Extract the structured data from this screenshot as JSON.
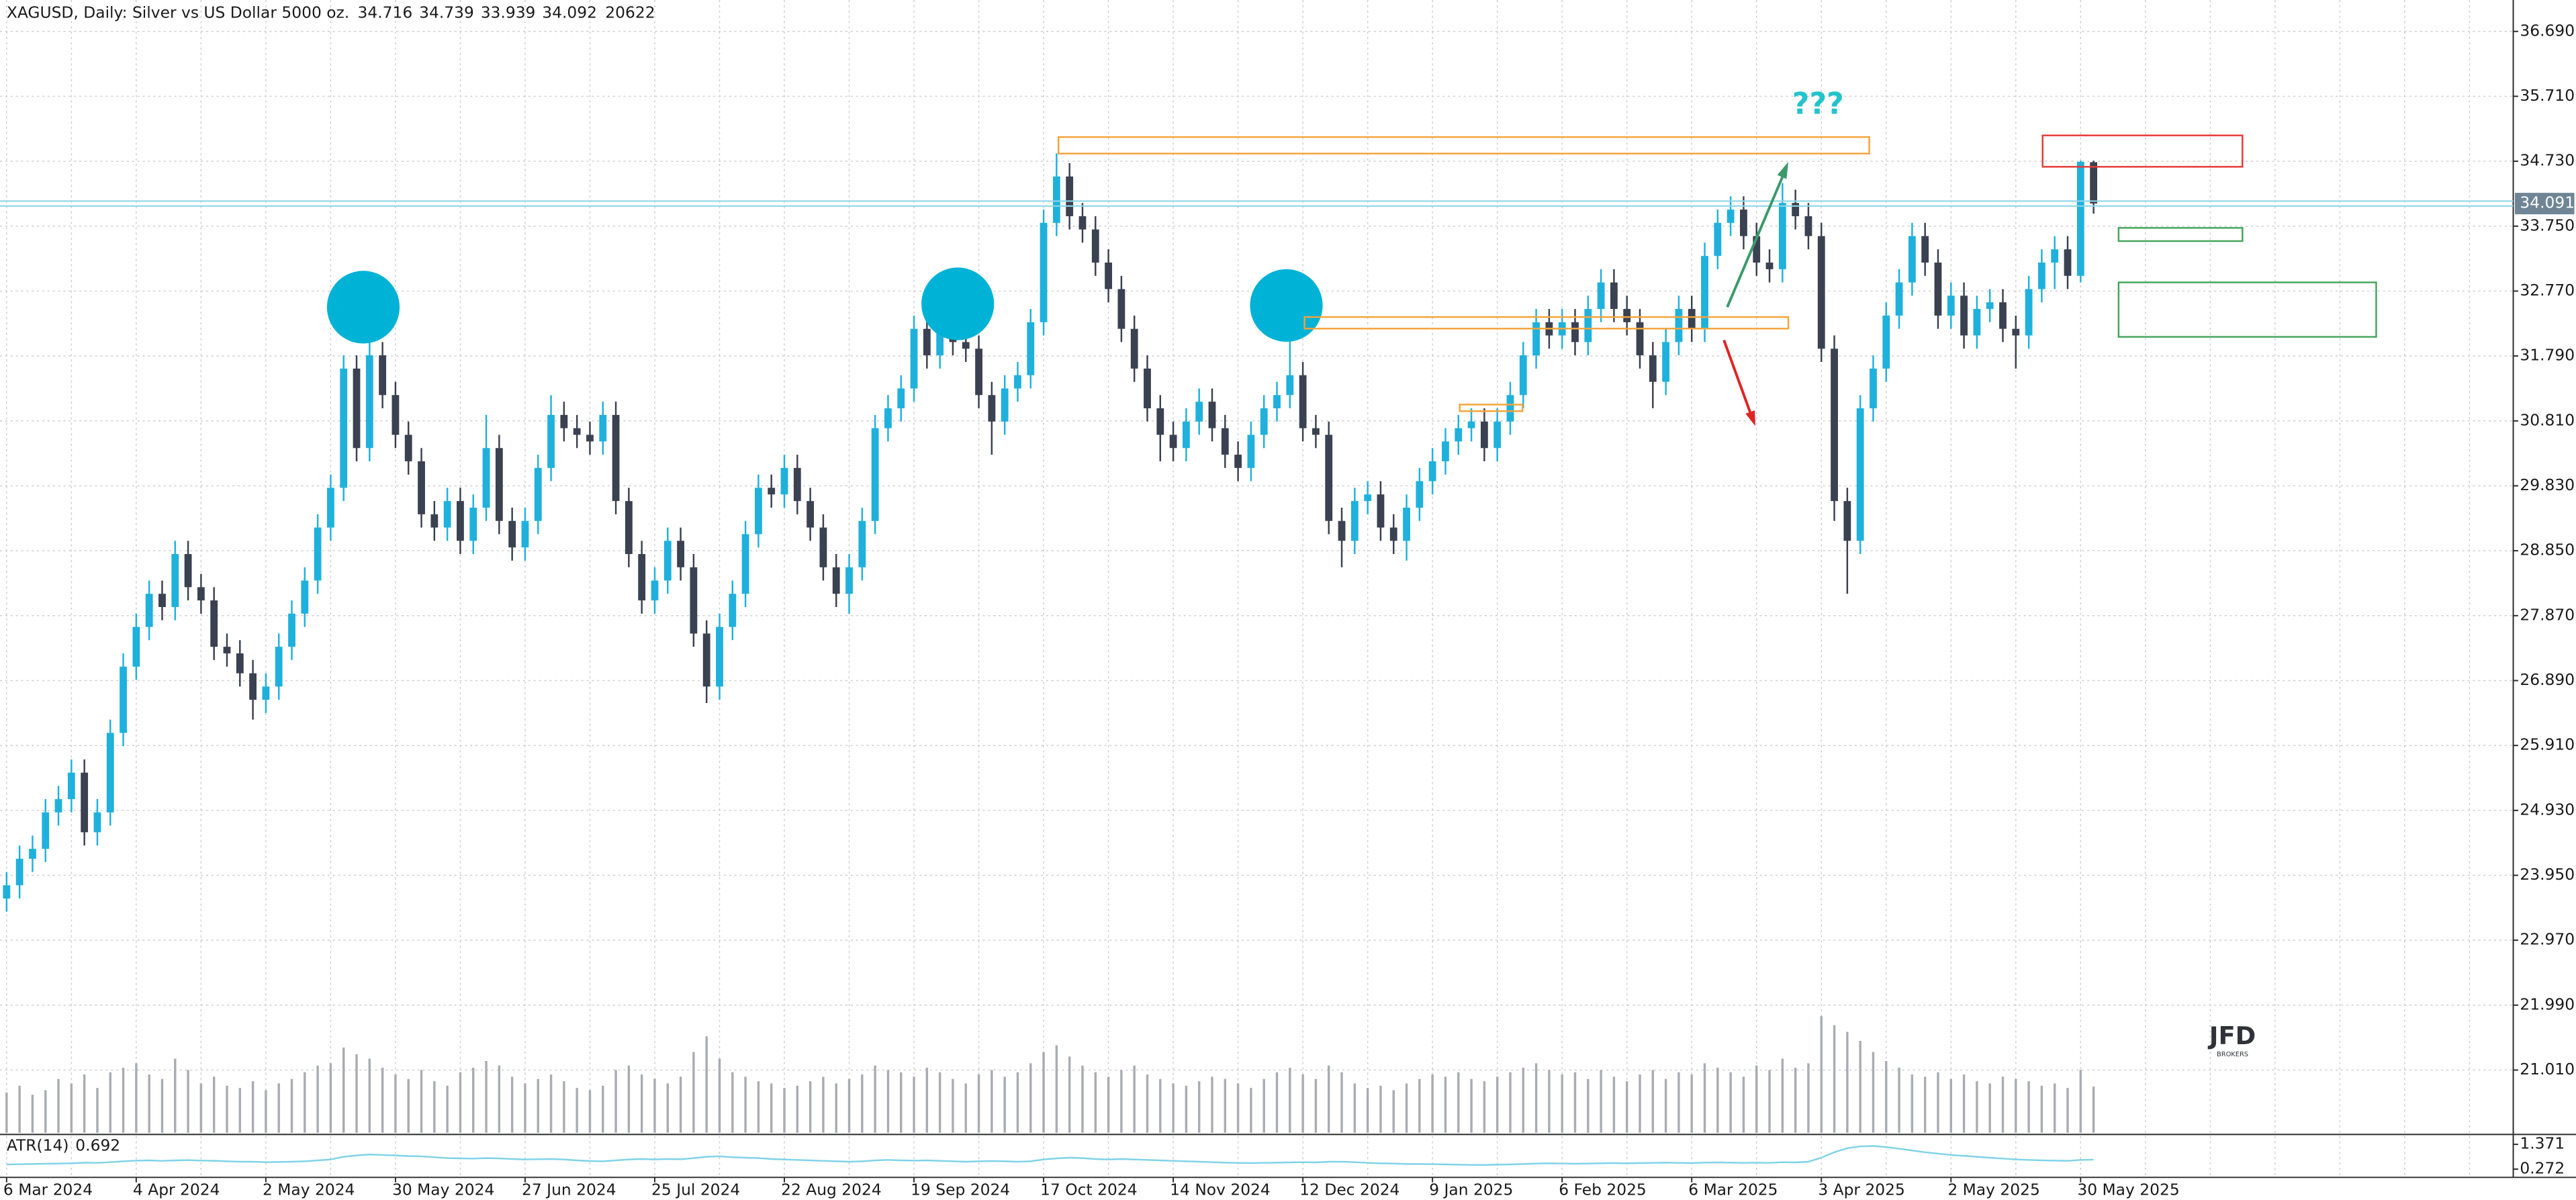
{
  "chart_data": {
    "type": "candlestick",
    "title": "XAGUSD, Daily:  Silver vs US Dollar 5000 oz.",
    "categories": [
      "6 Mar 2024",
      null,
      null,
      null,
      null,
      null,
      null,
      null,
      null,
      null,
      "4 Apr 2024",
      null,
      null,
      null,
      null,
      null,
      null,
      null,
      null,
      null,
      "2 May 2024",
      null,
      null,
      null,
      null,
      null,
      null,
      null,
      null,
      null,
      "30 May 2024",
      null,
      null,
      null,
      null,
      null,
      null,
      null,
      null,
      null,
      "27 Jun 2024",
      null,
      null,
      null,
      null,
      null,
      null,
      null,
      null,
      null,
      "25 Jul 2024",
      null,
      null,
      null,
      null,
      null,
      null,
      null,
      null,
      null,
      "22 Aug 2024",
      null,
      null,
      null,
      null,
      null,
      null,
      null,
      null,
      null,
      "19 Sep 2024",
      null,
      null,
      null,
      null,
      null,
      null,
      null,
      null,
      null,
      "17 Oct 2024",
      null,
      null,
      null,
      null,
      null,
      null,
      null,
      null,
      null,
      "14 Nov 2024",
      null,
      null,
      null,
      null,
      null,
      null,
      null,
      null,
      null,
      "12 Dec 2024",
      null,
      null,
      null,
      null,
      null,
      null,
      null,
      null,
      null,
      "9 Jan 2025",
      null,
      null,
      null,
      null,
      null,
      null,
      null,
      null,
      null,
      "6 Feb 2025",
      null,
      null,
      null,
      null,
      null,
      null,
      null,
      null,
      null,
      "6 Mar 2025",
      null,
      null,
      null,
      null,
      null,
      null,
      null,
      null,
      null,
      "3 Apr 2025",
      null,
      null,
      null,
      null,
      null,
      null,
      null,
      null,
      null,
      "2 May 2025",
      null,
      null,
      null,
      null,
      null,
      null,
      null,
      null,
      null,
      "30 May 2025",
      null
    ],
    "open": [
      23.6,
      23.8,
      24.2,
      24.35,
      24.9,
      25.1,
      25.5,
      24.6,
      24.9,
      26.1,
      27.1,
      27.7,
      28.2,
      28,
      28.8,
      28.3,
      28.1,
      27.4,
      27.3,
      27,
      26.6,
      26.8,
      27.4,
      27.9,
      28.4,
      29.2,
      29.8,
      31.6,
      30.4,
      31.8,
      31.2,
      30.6,
      30.2,
      29.4,
      29.2,
      29.6,
      29,
      29.5,
      30.4,
      29.3,
      28.9,
      29.3,
      30.1,
      30.9,
      30.7,
      30.6,
      30.5,
      30.9,
      29.6,
      28.8,
      28.1,
      28.4,
      29,
      28.6,
      27.6,
      26.8,
      27.7,
      28.2,
      29.1,
      29.8,
      29.7,
      30.1,
      29.6,
      29.2,
      28.6,
      28.2,
      28.6,
      29.3,
      30.7,
      31,
      31.3,
      32.2,
      31.8,
      32.3,
      32,
      31.9,
      31.2,
      30.8,
      31.3,
      31.5,
      32.3,
      33.8,
      34.5,
      33.9,
      33.7,
      33.2,
      32.8,
      32.2,
      31.6,
      31,
      30.6,
      30.4,
      30.8,
      31.1,
      30.7,
      30.3,
      30.1,
      30.6,
      31,
      31.2,
      31.5,
      30.7,
      30.6,
      29.3,
      29,
      29.6,
      29.7,
      29.2,
      29,
      29.5,
      29.9,
      30.2,
      30.5,
      30.7,
      30.8,
      30.4,
      30.8,
      31.2,
      31.8,
      32.3,
      32.1,
      32.3,
      32,
      32.5,
      32.9,
      32.5,
      32.3,
      31.8,
      31.4,
      32,
      32.5,
      32.2,
      33.3,
      33.8,
      34,
      33.6,
      33.2,
      33.1,
      34.1,
      33.9,
      33.6,
      31.9,
      29.6,
      29,
      31,
      31.6,
      32.4,
      32.9,
      33.6,
      33.2,
      32.4,
      32.7,
      32.1,
      32.5,
      32.6,
      32.2,
      32.1,
      32.8,
      33.2,
      33.4,
      33,
      34.716
    ],
    "high": [
      24,
      24.4,
      24.55,
      25.1,
      25.3,
      25.7,
      25.7,
      25.1,
      26.3,
      27.3,
      27.9,
      28.4,
      28.4,
      29,
      29,
      28.5,
      28.3,
      27.6,
      27.5,
      27.2,
      27,
      27.6,
      28.1,
      28.6,
      29.4,
      30,
      31.8,
      31.8,
      32.3,
      32,
      31.4,
      30.8,
      30.4,
      29.6,
      29.8,
      29.8,
      29.7,
      30.9,
      30.6,
      29.5,
      29.5,
      30.3,
      31.2,
      31.1,
      30.9,
      30.8,
      31.1,
      31.1,
      29.8,
      29,
      28.6,
      29.2,
      29.2,
      28.8,
      27.8,
      27.9,
      28.4,
      29.3,
      30,
      30,
      30.3,
      30.3,
      29.8,
      29.4,
      28.8,
      28.8,
      29.5,
      30.9,
      31.2,
      31.5,
      32.4,
      32.4,
      32.6,
      32.5,
      32.2,
      32.1,
      31.4,
      31.5,
      31.7,
      32.5,
      34,
      34.85,
      34.7,
      34.1,
      33.9,
      33.4,
      33,
      32.4,
      31.8,
      31.2,
      30.8,
      31,
      31.3,
      31.3,
      30.9,
      30.5,
      30.8,
      31.2,
      31.4,
      32.4,
      31.7,
      30.9,
      30.8,
      29.5,
      29.8,
      29.9,
      29.9,
      29.4,
      29.7,
      30.1,
      30.4,
      30.7,
      30.9,
      31,
      31,
      31,
      31.4,
      32,
      32.5,
      32.5,
      32.5,
      32.5,
      32.7,
      33.1,
      33.1,
      32.7,
      32.5,
      32,
      32.2,
      32.7,
      32.7,
      33.5,
      34,
      34.2,
      34.2,
      33.8,
      33.4,
      34.4,
      34.3,
      34.1,
      33.8,
      32.1,
      29.8,
      31.2,
      31.8,
      32.6,
      33.1,
      33.8,
      33.8,
      33.4,
      32.9,
      32.9,
      32.7,
      32.8,
      32.8,
      32.4,
      33,
      33.4,
      33.6,
      33.6,
      34.74,
      34.739
    ],
    "low": [
      23.4,
      23.6,
      24,
      24.15,
      24.7,
      24.9,
      24.4,
      24.4,
      24.7,
      25.9,
      26.9,
      27.5,
      27.8,
      27.8,
      28.1,
      27.9,
      27.2,
      27.1,
      26.8,
      26.3,
      26.4,
      26.6,
      27.2,
      27.7,
      28.2,
      29,
      29.6,
      30.2,
      30.2,
      31,
      30.4,
      30,
      29.2,
      29,
      29,
      28.8,
      28.8,
      29.3,
      29.1,
      28.7,
      28.7,
      29.1,
      29.9,
      30.5,
      30.4,
      30.3,
      30.3,
      29.4,
      28.6,
      27.9,
      27.9,
      28.2,
      28.4,
      27.4,
      26.55,
      26.6,
      27.5,
      28,
      28.9,
      29.5,
      29.5,
      29.4,
      29,
      28.4,
      28,
      27.9,
      28.4,
      29.1,
      30.5,
      30.8,
      31.1,
      31.6,
      31.6,
      31.8,
      31.7,
      31,
      30.3,
      30.6,
      31.1,
      31.3,
      32.1,
      33.6,
      33.7,
      33.5,
      33,
      32.6,
      32,
      31.4,
      30.8,
      30.2,
      30.2,
      30.2,
      30.6,
      30.5,
      30.1,
      29.9,
      29.9,
      30.4,
      30.8,
      31,
      30.5,
      30.4,
      29.1,
      28.6,
      28.8,
      29.4,
      29,
      28.8,
      28.7,
      29.3,
      29.7,
      30,
      30.3,
      30.5,
      30.2,
      30.2,
      30.6,
      31,
      31.6,
      31.9,
      31.9,
      31.8,
      31.8,
      32.3,
      32.3,
      32.1,
      31.6,
      31,
      31.2,
      31.8,
      32,
      32,
      33.1,
      33.6,
      33.4,
      33,
      32.9,
      32.9,
      33.7,
      33.4,
      31.7,
      29.3,
      28.2,
      28.8,
      30.8,
      31.4,
      32.2,
      32.7,
      33,
      32.2,
      32.2,
      31.9,
      31.9,
      32.3,
      32,
      31.6,
      31.9,
      32.6,
      32.8,
      32.8,
      32.9,
      33.939
    ],
    "close": [
      23.8,
      24.2,
      24.35,
      24.9,
      25.1,
      25.5,
      24.6,
      24.9,
      26.1,
      27.1,
      27.7,
      28.2,
      28,
      28.8,
      28.3,
      28.1,
      27.4,
      27.3,
      27,
      26.6,
      26.8,
      27.4,
      27.9,
      28.4,
      29.2,
      29.8,
      31.6,
      30.4,
      31.8,
      31.2,
      30.6,
      30.2,
      29.4,
      29.2,
      29.6,
      29,
      29.5,
      30.4,
      29.3,
      28.9,
      29.3,
      30.1,
      30.9,
      30.7,
      30.6,
      30.5,
      30.9,
      29.6,
      28.8,
      28.1,
      28.4,
      29,
      28.6,
      27.6,
      26.8,
      27.7,
      28.2,
      29.1,
      29.8,
      29.7,
      30.1,
      29.6,
      29.2,
      28.6,
      28.2,
      28.6,
      29.3,
      30.7,
      31,
      31.3,
      32.2,
      31.8,
      32.3,
      32,
      31.9,
      31.2,
      30.8,
      31.3,
      31.5,
      32.3,
      33.8,
      34.5,
      33.9,
      33.7,
      33.2,
      32.8,
      32.2,
      31.6,
      31,
      30.6,
      30.4,
      30.8,
      31.1,
      30.7,
      30.3,
      30.1,
      30.6,
      31,
      31.2,
      31.5,
      30.7,
      30.6,
      29.3,
      29,
      29.6,
      29.7,
      29.2,
      29,
      29.5,
      29.9,
      30.2,
      30.5,
      30.7,
      30.8,
      30.4,
      30.8,
      31.2,
      31.8,
      32.3,
      32.1,
      32.3,
      32,
      32.5,
      32.9,
      32.5,
      32.3,
      31.8,
      31.4,
      32,
      32.5,
      32.2,
      33.3,
      33.8,
      34,
      33.6,
      33.2,
      33.1,
      34.1,
      33.9,
      33.6,
      31.9,
      29.6,
      29,
      31,
      31.6,
      32.4,
      32.9,
      33.6,
      33.2,
      32.4,
      32.7,
      32.1,
      32.5,
      32.6,
      32.2,
      32.1,
      32.8,
      33.2,
      33.4,
      33,
      34.72,
      34.092
    ],
    "volume": [
      18000,
      21000,
      17000,
      19000,
      24000,
      22000,
      26000,
      20000,
      27000,
      29000,
      31000,
      26000,
      24000,
      33000,
      28000,
      22000,
      25000,
      21000,
      20000,
      23000,
      19000,
      22000,
      24000,
      27000,
      30000,
      31000,
      38000,
      35000,
      33000,
      29000,
      26000,
      24000,
      28000,
      23000,
      21000,
      27000,
      29000,
      32000,
      30000,
      25000,
      22000,
      24000,
      26000,
      23000,
      20000,
      19000,
      21000,
      28000,
      30000,
      26000,
      24000,
      22000,
      25000,
      36000,
      43000,
      33000,
      27000,
      25000,
      23000,
      22000,
      20000,
      21000,
      23000,
      25000,
      22000,
      24000,
      26000,
      30000,
      28000,
      27000,
      25000,
      29000,
      27000,
      24000,
      22000,
      26000,
      28000,
      25000,
      27000,
      31000,
      36000,
      39000,
      34000,
      30000,
      27000,
      25000,
      28000,
      30000,
      26000,
      24000,
      22000,
      21000,
      23000,
      25000,
      24000,
      22000,
      20000,
      24000,
      27000,
      29000,
      26000,
      24000,
      30000,
      27000,
      22000,
      20000,
      21000,
      19000,
      22000,
      24000,
      26000,
      25000,
      27000,
      24000,
      23000,
      25000,
      27000,
      29000,
      31000,
      28000,
      26000,
      27000,
      24000,
      28000,
      25000,
      23000,
      26000,
      28000,
      24000,
      27000,
      26000,
      31000,
      29000,
      27000,
      25000,
      30000,
      28000,
      33000,
      29000,
      31000,
      52000,
      48000,
      45000,
      41000,
      36000,
      32000,
      29000,
      26000,
      25000,
      27000,
      24000,
      26000,
      23000,
      22000,
      25000,
      24000,
      23000,
      21000,
      22000,
      20000,
      28000,
      20622
    ],
    "atr_name": "ATR(14)",
    "atr": [
      0.48,
      0.49,
      0.5,
      0.51,
      0.52,
      0.53,
      0.56,
      0.55,
      0.58,
      0.62,
      0.65,
      0.66,
      0.64,
      0.66,
      0.67,
      0.65,
      0.64,
      0.62,
      0.6,
      0.6,
      0.58,
      0.59,
      0.6,
      0.62,
      0.66,
      0.7,
      0.82,
      0.88,
      0.92,
      0.9,
      0.88,
      0.85,
      0.84,
      0.8,
      0.76,
      0.75,
      0.74,
      0.76,
      0.75,
      0.72,
      0.7,
      0.71,
      0.72,
      0.7,
      0.66,
      0.63,
      0.62,
      0.66,
      0.7,
      0.72,
      0.7,
      0.72,
      0.71,
      0.76,
      0.82,
      0.84,
      0.8,
      0.78,
      0.76,
      0.72,
      0.7,
      0.68,
      0.66,
      0.64,
      0.62,
      0.6,
      0.62,
      0.66,
      0.68,
      0.66,
      0.65,
      0.66,
      0.64,
      0.62,
      0.6,
      0.62,
      0.63,
      0.62,
      0.6,
      0.62,
      0.7,
      0.75,
      0.78,
      0.76,
      0.72,
      0.7,
      0.72,
      0.7,
      0.68,
      0.66,
      0.64,
      0.62,
      0.6,
      0.58,
      0.56,
      0.55,
      0.54,
      0.55,
      0.56,
      0.57,
      0.58,
      0.57,
      0.6,
      0.6,
      0.58,
      0.55,
      0.53,
      0.52,
      0.5,
      0.5,
      0.49,
      0.48,
      0.47,
      0.46,
      0.46,
      0.47,
      0.48,
      0.5,
      0.52,
      0.53,
      0.52,
      0.51,
      0.52,
      0.53,
      0.54,
      0.53,
      0.54,
      0.55,
      0.56,
      0.55,
      0.54,
      0.56,
      0.57,
      0.56,
      0.55,
      0.56,
      0.55,
      0.58,
      0.57,
      0.6,
      0.78,
      1.02,
      1.2,
      1.28,
      1.3,
      1.25,
      1.18,
      1.1,
      1.02,
      0.96,
      0.9,
      0.86,
      0.82,
      0.78,
      0.74,
      0.7,
      0.68,
      0.66,
      0.65,
      0.64,
      0.68,
      0.692
    ],
    "ylim": [
      20.063,
      37.164
    ],
    "yticks": [
      {
        "value": 36.69,
        "label": "36.690"
      },
      {
        "value": 35.71,
        "label": "35.710"
      },
      {
        "value": 34.73,
        "label": "34.730"
      },
      {
        "value": 33.75,
        "label": "33.750"
      },
      {
        "value": 32.77,
        "label": "32.770"
      },
      {
        "value": 31.79,
        "label": "31.790"
      },
      {
        "value": 30.81,
        "label": "30.810"
      },
      {
        "value": 29.83,
        "label": "29.830"
      },
      {
        "value": 28.85,
        "label": "28.850"
      },
      {
        "value": 27.87,
        "label": "27.870"
      },
      {
        "value": 26.89,
        "label": "26.890"
      },
      {
        "value": 25.91,
        "label": "25.910"
      },
      {
        "value": 24.93,
        "label": "24.930"
      },
      {
        "value": 23.95,
        "label": "23.950"
      },
      {
        "value": 22.97,
        "label": "22.970"
      },
      {
        "value": 21.99,
        "label": "21.990"
      },
      {
        "value": 21.01,
        "label": "21.010"
      }
    ],
    "volume_lim": [
      0,
      505000
    ],
    "atr_ylim": [
      -0.094,
      1.737
    ],
    "atr_yticks": [
      1.371,
      0.272
    ],
    "bid": 34.091,
    "grid": true,
    "colors": {
      "up": "#1fb1dc",
      "down": "#3a4150",
      "volume": "#a9acb2",
      "atr": "#7fd3e8",
      "bid": "#8fd6ea"
    },
    "annotation": "???",
    "logo": "JFD",
    "logo_sub": "BROKERS"
  }
}
